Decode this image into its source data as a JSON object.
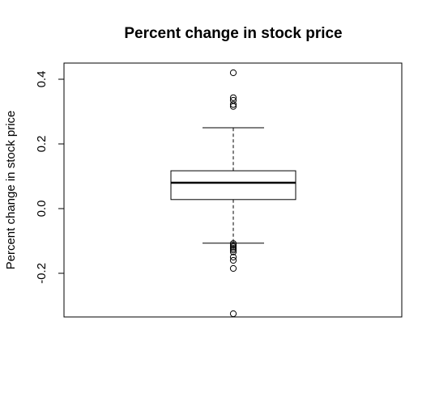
{
  "chart_data": {
    "type": "boxplot",
    "title": "Percent change in stock price",
    "xlabel": "",
    "ylabel": "Percent change in stock price",
    "ylim": [
      -0.335,
      0.45
    ],
    "yticks": [
      {
        "value": 0.4,
        "label": "0.4"
      },
      {
        "value": 0.2,
        "label": "0.2"
      },
      {
        "value": 0.0,
        "label": "0.0"
      },
      {
        "value": -0.2,
        "label": "-0.2"
      }
    ],
    "grid": false,
    "box": {
      "whisker_low": -0.107,
      "q1": 0.028,
      "median": 0.08,
      "q3": 0.117,
      "whisker_high": 0.25
    },
    "outliers": [
      0.42,
      0.343,
      0.335,
      0.322,
      0.316,
      -0.108,
      -0.113,
      -0.118,
      -0.123,
      -0.128,
      -0.134,
      -0.15,
      -0.16,
      -0.185,
      -0.325
    ]
  }
}
